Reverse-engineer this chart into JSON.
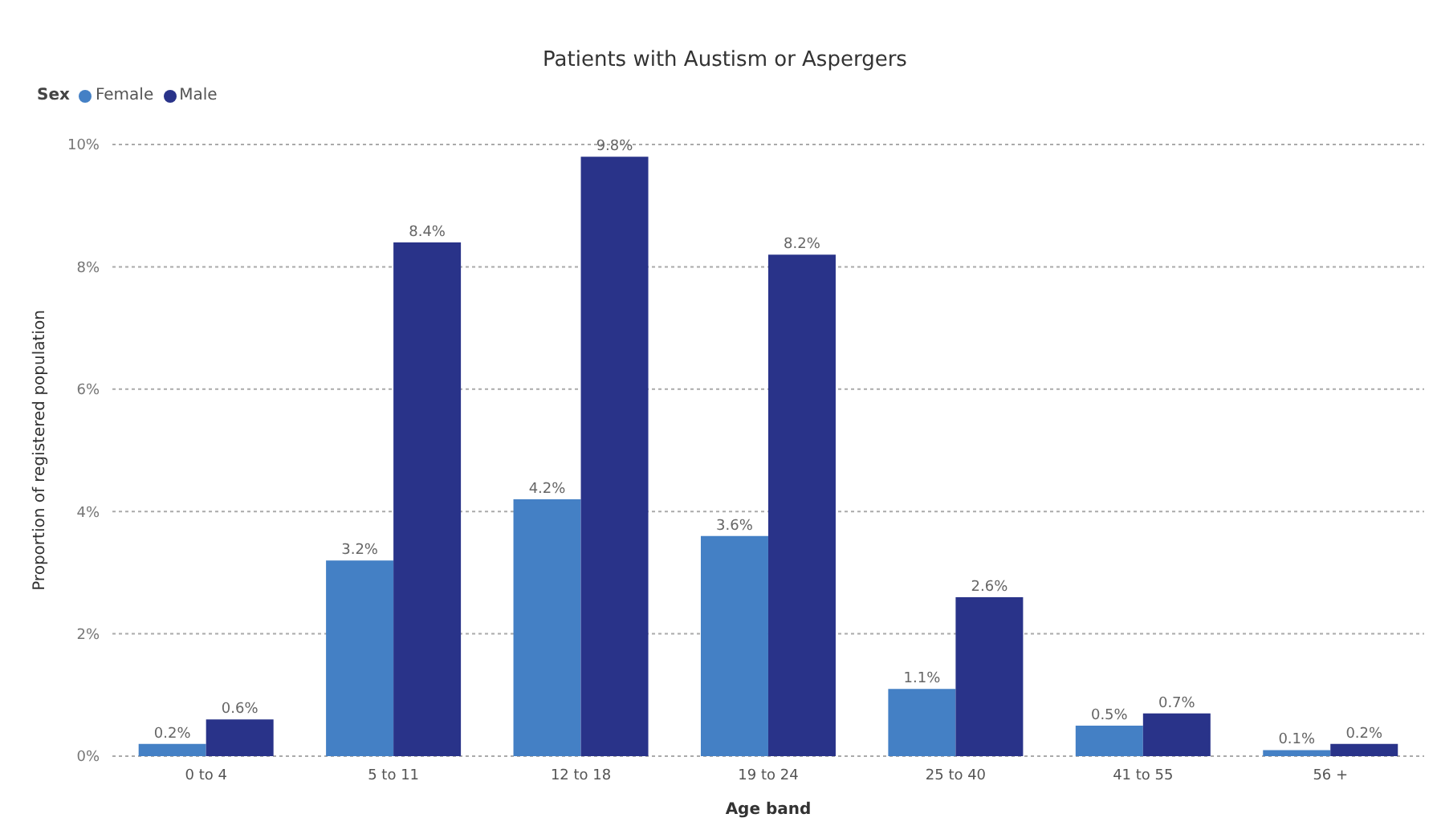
{
  "chart_data": {
    "type": "bar",
    "title": "Patients with Austism or Aspergers",
    "xlabel": "Age band",
    "ylabel": "Proportion of registered population",
    "legend_title": "Sex",
    "legend": "top left",
    "grid": "y",
    "categories": [
      "0 to 4",
      "5 to 11",
      "12 to 18",
      "19 to 24",
      "25 to 40",
      "41 to 55",
      "56 +"
    ],
    "series": [
      {
        "name": "Female",
        "color": "#4480c5",
        "values": [
          0.2,
          3.2,
          4.2,
          3.6,
          1.1,
          0.5,
          0.1
        ],
        "value_labels": [
          "0.2%",
          "3.2%",
          "4.2%",
          "3.6%",
          "1.1%",
          "0.5%",
          "0.1%"
        ]
      },
      {
        "name": "Male",
        "color": "#293389",
        "values": [
          0.6,
          8.4,
          9.8,
          8.2,
          2.6,
          0.7,
          0.2
        ],
        "value_labels": [
          "0.6%",
          "8.4%",
          "9.8%",
          "8.2%",
          "2.6%",
          "0.7%",
          "0.2%"
        ]
      }
    ],
    "ylim": [
      0,
      10
    ],
    "yticks": [
      {
        "value": 0,
        "label": "0%"
      },
      {
        "value": 2,
        "label": "2%"
      },
      {
        "value": 4,
        "label": "4%"
      },
      {
        "value": 6,
        "label": "6%"
      },
      {
        "value": 8,
        "label": "8%"
      },
      {
        "value": 10,
        "label": "10%"
      }
    ]
  }
}
